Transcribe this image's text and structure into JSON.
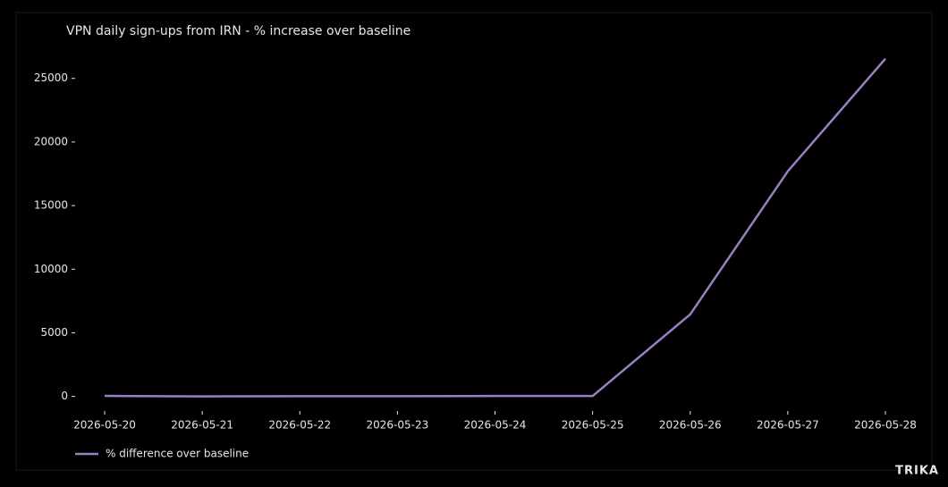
{
  "chart_data": {
    "type": "line",
    "title": "VPN daily sign-ups from IRN - % increase over baseline",
    "categories": [
      "2026-05-20",
      "2026-05-21",
      "2026-05-22",
      "2026-05-23",
      "2026-05-24",
      "2026-05-25",
      "2026-05-26",
      "2026-05-27",
      "2026-05-28"
    ],
    "series": [
      {
        "name": "% difference over baseline",
        "color": "#9b7fc4",
        "values": [
          40,
          0,
          20,
          20,
          30,
          30,
          6450,
          17700,
          26550
        ]
      }
    ],
    "ylim": [
      -800,
      27300
    ],
    "yticks": [
      0,
      5000,
      10000,
      15000,
      20000,
      25000
    ],
    "grid": false,
    "legend": "lower left"
  },
  "watermark": "TRIKA"
}
